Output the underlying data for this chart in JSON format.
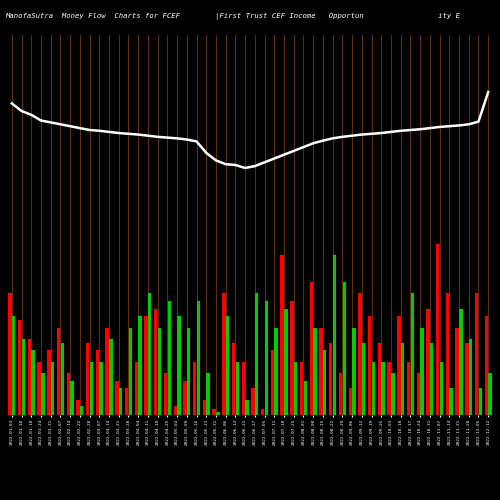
{
  "title_left": "ManofaSutra  Money Flow  Charts for FCEF",
  "title_right": "|First Trust CEF Income   Opportun                 ity E",
  "background_color": "#000000",
  "bar_color_pos": "#ff0000",
  "bar_color_neg": "#00cc00",
  "vline_color": "#8B4500",
  "line_color": "#ffffff",
  "n_bars": 50,
  "bar_values_red": [
    3.2,
    2.5,
    2.0,
    1.4,
    1.7,
    2.3,
    1.1,
    0.4,
    1.9,
    1.7,
    2.3,
    0.9,
    0.7,
    1.4,
    2.6,
    2.8,
    1.1,
    0.25,
    0.9,
    1.4,
    0.4,
    0.15,
    3.2,
    1.9,
    1.4,
    0.7,
    0.15,
    1.7,
    4.2,
    3.0,
    1.4,
    3.5,
    2.3,
    1.9,
    1.1,
    0.7,
    3.2,
    2.6,
    1.9,
    1.4,
    2.6,
    1.4,
    1.1,
    2.8,
    4.5,
    3.2,
    2.3,
    1.9,
    3.2,
    2.6
  ],
  "bar_values_green": [
    2.6,
    2.0,
    1.7,
    1.1,
    1.4,
    1.9,
    0.9,
    0.25,
    1.4,
    1.4,
    2.0,
    0.7,
    2.3,
    2.6,
    3.2,
    2.3,
    3.0,
    2.6,
    2.3,
    3.0,
    1.1,
    0.08,
    2.6,
    1.4,
    0.4,
    3.2,
    3.0,
    2.3,
    2.8,
    1.4,
    0.9,
    2.3,
    1.7,
    4.2,
    3.5,
    2.3,
    1.9,
    1.4,
    1.4,
    1.1,
    1.9,
    3.2,
    2.3,
    1.9,
    1.4,
    0.7,
    2.8,
    2.0,
    0.7,
    1.1
  ],
  "line_values": [
    8.2,
    8.0,
    7.9,
    7.75,
    7.7,
    7.65,
    7.6,
    7.55,
    7.5,
    7.48,
    7.45,
    7.42,
    7.4,
    7.38,
    7.35,
    7.32,
    7.3,
    7.28,
    7.25,
    7.2,
    6.9,
    6.7,
    6.6,
    6.58,
    6.5,
    6.55,
    6.65,
    6.75,
    6.85,
    6.95,
    7.05,
    7.15,
    7.22,
    7.28,
    7.32,
    7.35,
    7.38,
    7.4,
    7.42,
    7.45,
    7.48,
    7.5,
    7.52,
    7.55,
    7.58,
    7.6,
    7.62,
    7.65,
    7.72,
    8.5
  ],
  "xlabels": [
    "2022-01-03",
    "2022-01-10",
    "2022-01-18",
    "2022-01-24",
    "2022-01-31",
    "2022-02-07",
    "2022-02-14",
    "2022-02-22",
    "2022-02-28",
    "2022-03-07",
    "2022-03-14",
    "2022-03-21",
    "2022-03-28",
    "2022-04-04",
    "2022-04-11",
    "2022-04-18",
    "2022-04-25",
    "2022-05-02",
    "2022-05-09",
    "2022-05-16",
    "2022-05-23",
    "2022-05-31",
    "2022-06-06",
    "2022-06-13",
    "2022-06-21",
    "2022-06-27",
    "2022-07-05",
    "2022-07-11",
    "2022-07-18",
    "2022-07-25",
    "2022-08-01",
    "2022-08-08",
    "2022-08-15",
    "2022-08-22",
    "2022-08-29",
    "2022-09-06",
    "2022-09-12",
    "2022-09-19",
    "2022-09-26",
    "2022-10-03",
    "2022-10-10",
    "2022-10-17",
    "2022-10-24",
    "2022-10-31",
    "2022-11-07",
    "2022-11-14",
    "2022-11-21",
    "2022-11-28",
    "2022-12-05",
    "2022-12-12"
  ],
  "ylim": [
    0,
    10
  ],
  "figsize": [
    5.0,
    5.0
  ],
  "dpi": 100
}
